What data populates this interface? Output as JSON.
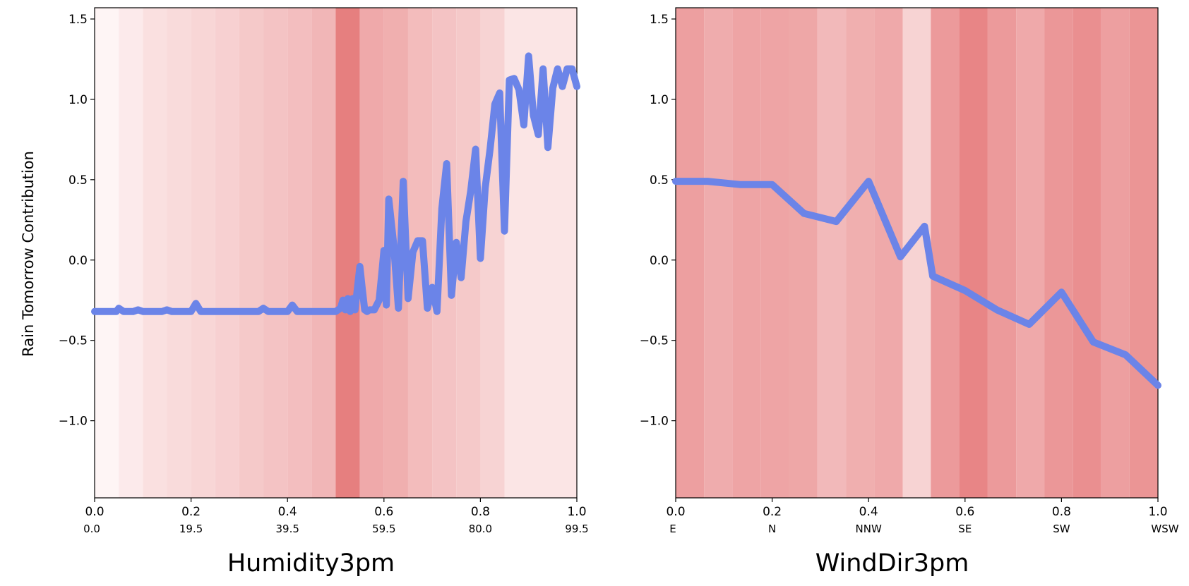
{
  "chart_data": [
    {
      "type": "line",
      "title": "Humidity3pm",
      "ylabel": "Rain Tomorrow Contribution",
      "xlim": [
        0,
        1
      ],
      "ylim": [
        -1.48,
        1.57
      ],
      "x_ticks": [
        "0.0",
        "0.2",
        "0.4",
        "0.6",
        "0.8",
        "1.0"
      ],
      "x_tick_values": [
        0,
        0.2,
        0.4,
        0.6,
        0.8,
        1.0
      ],
      "x_sub_ticks": [
        "0.0",
        "19.5",
        "39.5",
        "59.5",
        "80.0",
        "99.5"
      ],
      "y_ticks": [
        "1.5",
        "1.0",
        "0.5",
        "0.0",
        "−0.5",
        "−1.0"
      ],
      "y_tick_values": [
        1.5,
        1.0,
        0.5,
        0.0,
        -0.5,
        -1.0
      ],
      "line_color": "#6b84e8",
      "background_bands": {
        "edges": [
          0,
          0.05,
          0.1,
          0.15,
          0.2,
          0.25,
          0.3,
          0.35,
          0.4,
          0.45,
          0.5,
          0.55,
          0.6,
          0.65,
          0.7,
          0.75,
          0.8,
          0.85,
          1.0
        ],
        "intensity": [
          0.04,
          0.12,
          0.2,
          0.24,
          0.28,
          0.32,
          0.38,
          0.42,
          0.46,
          0.52,
          0.95,
          0.62,
          0.58,
          0.48,
          0.42,
          0.38,
          0.3,
          0.16
        ]
      },
      "series": [
        {
          "x": [
            0,
            0.025,
            0.045,
            0.05,
            0.06,
            0.08,
            0.09,
            0.1,
            0.12,
            0.14,
            0.15,
            0.16,
            0.18,
            0.2,
            0.21,
            0.22,
            0.24,
            0.26,
            0.28,
            0.3,
            0.32,
            0.34,
            0.35,
            0.36,
            0.38,
            0.4,
            0.41,
            0.42,
            0.44,
            0.46,
            0.48,
            0.5,
            0.51,
            0.515,
            0.52,
            0.525,
            0.53,
            0.535,
            0.54,
            0.55,
            0.555,
            0.56,
            0.565,
            0.57,
            0.58,
            0.59,
            0.595,
            0.6,
            0.605,
            0.61,
            0.62,
            0.63,
            0.64,
            0.65,
            0.66,
            0.67,
            0.68,
            0.69,
            0.7,
            0.71,
            0.72,
            0.73,
            0.74,
            0.75,
            0.76,
            0.77,
            0.78,
            0.79,
            0.8,
            0.81,
            0.82,
            0.83,
            0.84,
            0.85,
            0.86,
            0.87,
            0.88,
            0.89,
            0.9,
            0.91,
            0.92,
            0.93,
            0.94,
            0.95,
            0.96,
            0.97,
            0.98,
            0.99,
            1.0
          ],
          "y": [
            -0.32,
            -0.32,
            -0.32,
            -0.3,
            -0.32,
            -0.32,
            -0.31,
            -0.32,
            -0.32,
            -0.32,
            -0.31,
            -0.32,
            -0.32,
            -0.32,
            -0.27,
            -0.32,
            -0.32,
            -0.32,
            -0.32,
            -0.32,
            -0.32,
            -0.32,
            -0.3,
            -0.32,
            -0.32,
            -0.32,
            -0.28,
            -0.32,
            -0.32,
            -0.32,
            -0.32,
            -0.32,
            -0.3,
            -0.25,
            -0.31,
            -0.24,
            -0.32,
            -0.24,
            -0.31,
            -0.04,
            -0.18,
            -0.31,
            -0.32,
            -0.31,
            -0.31,
            -0.25,
            -0.1,
            0.06,
            -0.28,
            0.38,
            0.1,
            -0.3,
            0.49,
            -0.24,
            0.05,
            0.12,
            0.12,
            -0.3,
            -0.17,
            -0.32,
            0.32,
            0.6,
            -0.22,
            0.11,
            -0.11,
            0.24,
            0.43,
            0.69,
            0.01,
            0.45,
            0.69,
            0.97,
            1.04,
            0.18,
            1.12,
            1.13,
            1.06,
            0.84,
            1.27,
            0.9,
            0.78,
            1.19,
            0.7,
            1.07,
            1.19,
            1.08,
            1.19,
            1.19,
            1.08
          ]
        }
      ]
    },
    {
      "type": "line",
      "title": "WindDir3pm",
      "ylabel": "",
      "xlim": [
        0,
        1
      ],
      "ylim": [
        -1.48,
        1.57
      ],
      "x_ticks": [
        "0.0",
        "0.2",
        "0.4",
        "0.6",
        "0.8",
        "1.0"
      ],
      "x_tick_values": [
        0,
        0.2,
        0.4,
        0.6,
        0.8,
        1.0
      ],
      "x_sub_ticks": [
        "E",
        "N",
        "NNW",
        "SE",
        "SW",
        "WSW"
      ],
      "y_ticks": [
        "1.5",
        "1.0",
        "0.5",
        "0.0",
        "−0.5",
        "−1.0"
      ],
      "y_tick_values": [
        1.5,
        1.0,
        0.5,
        0.0,
        -0.5,
        -1.0
      ],
      "line_color": "#6b84e8",
      "background_bands": {
        "edges": [
          0,
          0.059,
          0.118,
          0.176,
          0.235,
          0.294,
          0.353,
          0.412,
          0.471,
          0.529,
          0.588,
          0.647,
          0.706,
          0.765,
          0.824,
          0.882,
          0.941,
          1.0
        ],
        "intensity": [
          0.7,
          0.6,
          0.66,
          0.66,
          0.64,
          0.5,
          0.58,
          0.62,
          0.3,
          0.74,
          0.9,
          0.74,
          0.62,
          0.76,
          0.82,
          0.7,
          0.78
        ]
      },
      "series": [
        {
          "x": [
            0,
            0.066,
            0.133,
            0.2,
            0.266,
            0.333,
            0.4,
            0.466,
            0.516,
            0.533,
            0.6,
            0.666,
            0.733,
            0.8,
            0.866,
            0.933,
            1.0
          ],
          "y": [
            0.49,
            0.49,
            0.47,
            0.47,
            0.29,
            0.24,
            0.49,
            0.02,
            0.21,
            -0.1,
            -0.19,
            -0.31,
            -0.4,
            -0.2,
            -0.51,
            -0.59,
            -0.78
          ]
        }
      ]
    }
  ]
}
